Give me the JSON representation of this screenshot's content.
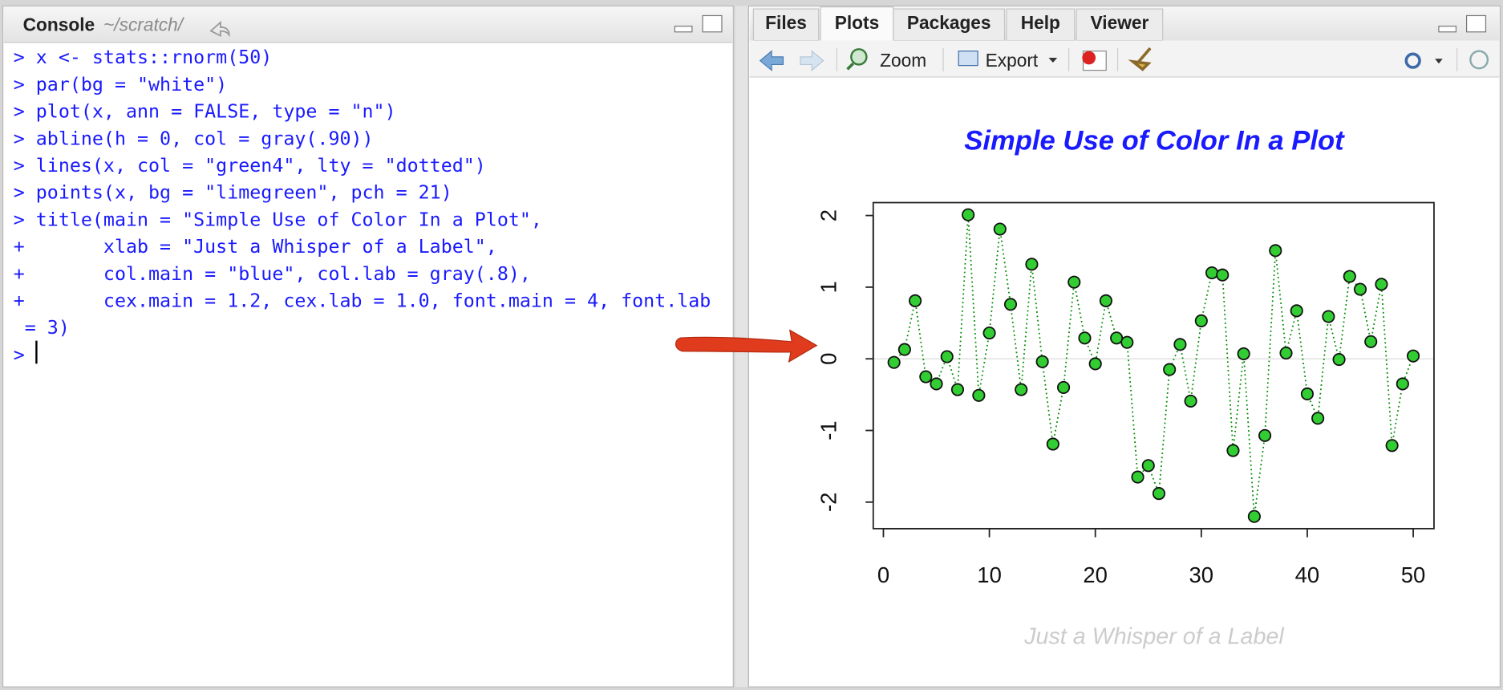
{
  "console": {
    "title": "Console",
    "path": "~/scratch/",
    "lines": [
      "> x <- stats::rnorm(50)",
      "> par(bg = \"white\")",
      "> plot(x, ann = FALSE, type = \"n\")",
      "> abline(h = 0, col = gray(.90))",
      "> lines(x, col = \"green4\", lty = \"dotted\")",
      "> points(x, bg = \"limegreen\", pch = 21)",
      "> title(main = \"Simple Use of Color In a Plot\",",
      "+       xlab = \"Just a Whisper of a Label\",",
      "+       col.main = \"blue\", col.lab = gray(.8),",
      "+       cex.main = 1.2, cex.lab = 1.0, font.main = 4, font.lab",
      " = 3)",
      ">"
    ]
  },
  "plots_pane": {
    "tabs": [
      "Files",
      "Plots",
      "Packages",
      "Help",
      "Viewer"
    ],
    "toolbar": {
      "zoom": "Zoom",
      "export": "Export"
    }
  },
  "chart_data": {
    "type": "scatter",
    "title": "Simple Use of Color In a Plot",
    "x_label": "Just a Whisper of a Label",
    "title_color": "#1a1aff",
    "label_color": "#cccccc",
    "x": [
      1,
      2,
      3,
      4,
      5,
      6,
      7,
      8,
      9,
      10,
      11,
      12,
      13,
      14,
      15,
      16,
      17,
      18,
      19,
      20,
      21,
      22,
      23,
      24,
      25,
      26,
      27,
      28,
      29,
      30,
      31,
      32,
      33,
      34,
      35,
      36,
      37,
      38,
      39,
      40,
      41,
      42,
      43,
      44,
      45,
      46,
      47,
      48,
      49,
      50
    ],
    "values": [
      -0.05,
      0.13,
      0.81,
      -0.25,
      -0.35,
      0.03,
      -0.43,
      2.01,
      -0.51,
      0.36,
      1.81,
      0.76,
      -0.43,
      1.32,
      -0.04,
      -1.19,
      -0.4,
      1.07,
      0.29,
      -0.07,
      0.81,
      0.29,
      0.23,
      -1.65,
      -1.49,
      -1.88,
      -0.15,
      0.2,
      -0.59,
      0.53,
      1.2,
      1.17,
      -1.28,
      0.07,
      -2.2,
      -1.07,
      1.51,
      0.08,
      0.67,
      -0.49,
      -0.83,
      0.59,
      -0.01,
      1.15,
      0.97,
      0.24,
      1.04,
      -1.21,
      -0.35,
      0.04
    ],
    "line_color": "#008b00",
    "line_style": "dotted",
    "point_color": "#32cd32",
    "reference_line": {
      "value": 0,
      "color": "#e5e5e5"
    },
    "xlim": [
      -0.96,
      51.96
    ],
    "ylim": [
      -2.37,
      2.18
    ],
    "xticks": [
      0,
      10,
      20,
      30,
      40,
      50
    ],
    "yticks": [
      -2,
      -1,
      0,
      1,
      2
    ]
  }
}
